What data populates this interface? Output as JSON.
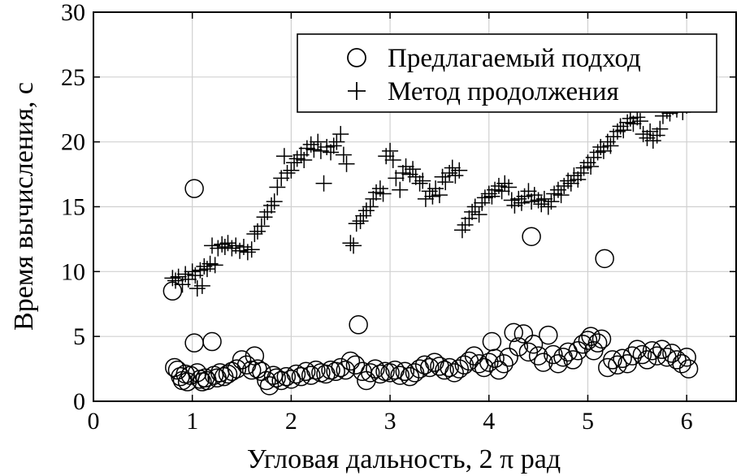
{
  "chart_data": {
    "type": "scatter",
    "xlabel": "Угловая дальность, 2 π рад",
    "ylabel": "Время вычисления, с",
    "xlim": [
      0,
      6.5
    ],
    "ylim": [
      0,
      30
    ],
    "xticks": [
      0,
      1,
      2,
      3,
      4,
      5,
      6
    ],
    "yticks": [
      0,
      5,
      10,
      15,
      20,
      25,
      30
    ],
    "grid": true,
    "legend_position": "top-right",
    "series": [
      {
        "name": "Предлагаемый подход",
        "marker": "circle",
        "color": "#000000",
        "points": [
          [
            0.8,
            8.5
          ],
          [
            0.82,
            2.6
          ],
          [
            0.85,
            2.4
          ],
          [
            0.88,
            1.9
          ],
          [
            0.9,
            1.6
          ],
          [
            0.93,
            2.1
          ],
          [
            0.95,
            1.5
          ],
          [
            0.98,
            2.0
          ],
          [
            1.02,
            16.4
          ],
          [
            1.02,
            4.5
          ],
          [
            1.05,
            2.2
          ],
          [
            1.08,
            1.7
          ],
          [
            1.1,
            1.5
          ],
          [
            1.13,
            1.8
          ],
          [
            1.15,
            1.6
          ],
          [
            1.2,
            4.6
          ],
          [
            1.22,
            2.0
          ],
          [
            1.25,
            1.8
          ],
          [
            1.28,
            2.2
          ],
          [
            1.32,
            1.9
          ],
          [
            1.36,
            2.1
          ],
          [
            1.4,
            2.3
          ],
          [
            1.45,
            2.5
          ],
          [
            1.5,
            3.2
          ],
          [
            1.55,
            2.8
          ],
          [
            1.6,
            2.4
          ],
          [
            1.63,
            3.5
          ],
          [
            1.66,
            2.5
          ],
          [
            1.7,
            2.3
          ],
          [
            1.75,
            1.6
          ],
          [
            1.78,
            1.2
          ],
          [
            1.82,
            2.0
          ],
          [
            1.85,
            1.8
          ],
          [
            1.9,
            1.6
          ],
          [
            1.95,
            1.9
          ],
          [
            2.0,
            1.7
          ],
          [
            2.05,
            2.1
          ],
          [
            2.1,
            1.9
          ],
          [
            2.15,
            2.3
          ],
          [
            2.2,
            2.0
          ],
          [
            2.25,
            2.4
          ],
          [
            2.3,
            2.2
          ],
          [
            2.35,
            2.1
          ],
          [
            2.4,
            2.4
          ],
          [
            2.45,
            2.3
          ],
          [
            2.5,
            2.6
          ],
          [
            2.55,
            2.4
          ],
          [
            2.6,
            3.1
          ],
          [
            2.65,
            2.8
          ],
          [
            2.68,
            5.9
          ],
          [
            2.72,
            2.3
          ],
          [
            2.76,
            1.6
          ],
          [
            2.8,
            2.2
          ],
          [
            2.85,
            2.5
          ],
          [
            2.9,
            2.1
          ],
          [
            2.95,
            2.3
          ],
          [
            3.0,
            2.2
          ],
          [
            3.05,
            2.4
          ],
          [
            3.1,
            2.0
          ],
          [
            3.15,
            2.3
          ],
          [
            3.2,
            1.9
          ],
          [
            3.25,
            2.2
          ],
          [
            3.3,
            2.5
          ],
          [
            3.35,
            2.8
          ],
          [
            3.4,
            2.6
          ],
          [
            3.45,
            3.0
          ],
          [
            3.5,
            2.7
          ],
          [
            3.55,
            2.4
          ],
          [
            3.6,
            2.6
          ],
          [
            3.65,
            2.2
          ],
          [
            3.7,
            2.5
          ],
          [
            3.75,
            2.8
          ],
          [
            3.8,
            3.1
          ],
          [
            3.85,
            3.5
          ],
          [
            3.9,
            2.9
          ],
          [
            3.95,
            2.6
          ],
          [
            4.0,
            3.0
          ],
          [
            4.03,
            4.6
          ],
          [
            4.06,
            3.3
          ],
          [
            4.1,
            2.4
          ],
          [
            4.15,
            2.9
          ],
          [
            4.2,
            3.4
          ],
          [
            4.25,
            5.3
          ],
          [
            4.3,
            4.2
          ],
          [
            4.35,
            5.2
          ],
          [
            4.4,
            3.8
          ],
          [
            4.43,
            12.7
          ],
          [
            4.45,
            4.4
          ],
          [
            4.5,
            3.5
          ],
          [
            4.55,
            3.0
          ],
          [
            4.6,
            5.1
          ],
          [
            4.65,
            3.6
          ],
          [
            4.7,
            2.9
          ],
          [
            4.75,
            3.4
          ],
          [
            4.8,
            3.8
          ],
          [
            4.85,
            3.2
          ],
          [
            4.9,
            3.9
          ],
          [
            4.95,
            4.4
          ],
          [
            5.0,
            4.7
          ],
          [
            5.03,
            5.0
          ],
          [
            5.06,
            3.9
          ],
          [
            5.1,
            4.5
          ],
          [
            5.14,
            4.8
          ],
          [
            5.17,
            11.0
          ],
          [
            5.2,
            2.6
          ],
          [
            5.25,
            3.2
          ],
          [
            5.3,
            2.8
          ],
          [
            5.35,
            3.3
          ],
          [
            5.4,
            2.9
          ],
          [
            5.45,
            3.5
          ],
          [
            5.5,
            4.0
          ],
          [
            5.55,
            3.6
          ],
          [
            5.6,
            3.2
          ],
          [
            5.65,
            3.9
          ],
          [
            5.7,
            3.5
          ],
          [
            5.75,
            4.0
          ],
          [
            5.8,
            3.4
          ],
          [
            5.85,
            3.7
          ],
          [
            5.9,
            3.2
          ],
          [
            5.95,
            2.9
          ],
          [
            6.0,
            3.4
          ],
          [
            6.02,
            2.5
          ]
        ]
      },
      {
        "name": "Метод продолжения",
        "marker": "plus",
        "color": "#000000",
        "points": [
          [
            0.8,
            9.5
          ],
          [
            0.83,
            9.3
          ],
          [
            0.86,
            9.6
          ],
          [
            0.9,
            9.0
          ],
          [
            0.93,
            9.8
          ],
          [
            0.96,
            9.4
          ],
          [
            1.0,
            10.0
          ],
          [
            1.03,
            9.7
          ],
          [
            1.05,
            8.7
          ],
          [
            1.08,
            10.1
          ],
          [
            1.1,
            8.9
          ],
          [
            1.12,
            10.4
          ],
          [
            1.15,
            10.2
          ],
          [
            1.18,
            10.6
          ],
          [
            1.2,
            12.0
          ],
          [
            1.23,
            10.5
          ],
          [
            1.26,
            11.8
          ],
          [
            1.3,
            12.1
          ],
          [
            1.33,
            11.9
          ],
          [
            1.36,
            12.2
          ],
          [
            1.4,
            11.8
          ],
          [
            1.44,
            12.0
          ],
          [
            1.48,
            11.6
          ],
          [
            1.52,
            11.9
          ],
          [
            1.56,
            11.5
          ],
          [
            1.6,
            11.7
          ],
          [
            1.63,
            12.9
          ],
          [
            1.66,
            13.1
          ],
          [
            1.7,
            13.5
          ],
          [
            1.73,
            14.2
          ],
          [
            1.76,
            14.6
          ],
          [
            1.8,
            15.1
          ],
          [
            1.83,
            15.4
          ],
          [
            1.86,
            16.5
          ],
          [
            1.9,
            17.2
          ],
          [
            1.93,
            18.9
          ],
          [
            1.96,
            17.6
          ],
          [
            2.0,
            17.8
          ],
          [
            2.03,
            18.4
          ],
          [
            2.06,
            18.7
          ],
          [
            2.1,
            19.0
          ],
          [
            2.13,
            18.6
          ],
          [
            2.16,
            19.5
          ],
          [
            2.2,
            19.8
          ],
          [
            2.23,
            19.4
          ],
          [
            2.27,
            20.0
          ],
          [
            2.3,
            19.3
          ],
          [
            2.33,
            16.8
          ],
          [
            2.36,
            19.6
          ],
          [
            2.4,
            19.2
          ],
          [
            2.43,
            19.7
          ],
          [
            2.46,
            20.0
          ],
          [
            2.5,
            20.6
          ],
          [
            2.53,
            19.0
          ],
          [
            2.56,
            18.3
          ],
          [
            2.6,
            12.2
          ],
          [
            2.63,
            12.0
          ],
          [
            2.66,
            13.7
          ],
          [
            2.7,
            13.9
          ],
          [
            2.73,
            14.3
          ],
          [
            2.76,
            14.7
          ],
          [
            2.8,
            15.0
          ],
          [
            2.83,
            15.6
          ],
          [
            2.86,
            16.1
          ],
          [
            2.9,
            16.4
          ],
          [
            2.93,
            16.0
          ],
          [
            2.96,
            18.9
          ],
          [
            3.0,
            19.3
          ],
          [
            3.03,
            18.6
          ],
          [
            3.06,
            17.2
          ],
          [
            3.1,
            16.3
          ],
          [
            3.13,
            17.6
          ],
          [
            3.16,
            18.1
          ],
          [
            3.2,
            17.5
          ],
          [
            3.23,
            17.9
          ],
          [
            3.26,
            17.3
          ],
          [
            3.3,
            16.8
          ],
          [
            3.33,
            17.0
          ],
          [
            3.36,
            15.6
          ],
          [
            3.4,
            16.2
          ],
          [
            3.43,
            15.8
          ],
          [
            3.46,
            16.4
          ],
          [
            3.5,
            15.9
          ],
          [
            3.53,
            17.3
          ],
          [
            3.56,
            16.9
          ],
          [
            3.6,
            17.6
          ],
          [
            3.63,
            18.0
          ],
          [
            3.66,
            17.4
          ],
          [
            3.7,
            17.8
          ],
          [
            3.73,
            13.2
          ],
          [
            3.76,
            13.6
          ],
          [
            3.8,
            14.1
          ],
          [
            3.83,
            14.6
          ],
          [
            3.86,
            15.0
          ],
          [
            3.9,
            14.4
          ],
          [
            3.93,
            15.3
          ],
          [
            3.96,
            15.7
          ],
          [
            4.0,
            16.0
          ],
          [
            4.03,
            15.8
          ],
          [
            4.06,
            16.3
          ],
          [
            4.1,
            16.6
          ],
          [
            4.13,
            16.2
          ],
          [
            4.16,
            16.8
          ],
          [
            4.2,
            16.5
          ],
          [
            4.23,
            15.5
          ],
          [
            4.26,
            15.1
          ],
          [
            4.3,
            15.6
          ],
          [
            4.33,
            15.3
          ],
          [
            4.36,
            15.8
          ],
          [
            4.4,
            16.2
          ],
          [
            4.43,
            15.4
          ],
          [
            4.46,
            15.9
          ],
          [
            4.5,
            15.5
          ],
          [
            4.53,
            15.2
          ],
          [
            4.56,
            15.6
          ],
          [
            4.6,
            15.0
          ],
          [
            4.63,
            15.4
          ],
          [
            4.66,
            16.0
          ],
          [
            4.7,
            16.3
          ],
          [
            4.73,
            15.9
          ],
          [
            4.76,
            16.6
          ],
          [
            4.8,
            17.0
          ],
          [
            4.83,
            16.8
          ],
          [
            4.86,
            17.4
          ],
          [
            4.9,
            17.1
          ],
          [
            4.93,
            17.6
          ],
          [
            4.96,
            18.0
          ],
          [
            5.0,
            18.4
          ],
          [
            5.03,
            18.1
          ],
          [
            5.06,
            18.8
          ],
          [
            5.1,
            19.2
          ],
          [
            5.13,
            19.6
          ],
          [
            5.16,
            19.3
          ],
          [
            5.2,
            20.0
          ],
          [
            5.23,
            19.7
          ],
          [
            5.26,
            20.4
          ],
          [
            5.3,
            20.8
          ],
          [
            5.33,
            21.2
          ],
          [
            5.36,
            20.9
          ],
          [
            5.4,
            21.5
          ],
          [
            5.43,
            21.8
          ],
          [
            5.46,
            21.4
          ],
          [
            5.5,
            21.9
          ],
          [
            5.53,
            21.6
          ],
          [
            5.56,
            20.6
          ],
          [
            5.6,
            20.3
          ],
          [
            5.63,
            20.8
          ],
          [
            5.66,
            20.1
          ],
          [
            5.7,
            20.5
          ],
          [
            5.73,
            21.0
          ],
          [
            5.76,
            22.0
          ],
          [
            5.8,
            22.4
          ],
          [
            5.83,
            22.2
          ],
          [
            5.86,
            22.7
          ],
          [
            5.9,
            22.5
          ],
          [
            5.93,
            22.9
          ],
          [
            5.96,
            22.3
          ],
          [
            6.0,
            22.8
          ]
        ]
      }
    ]
  }
}
